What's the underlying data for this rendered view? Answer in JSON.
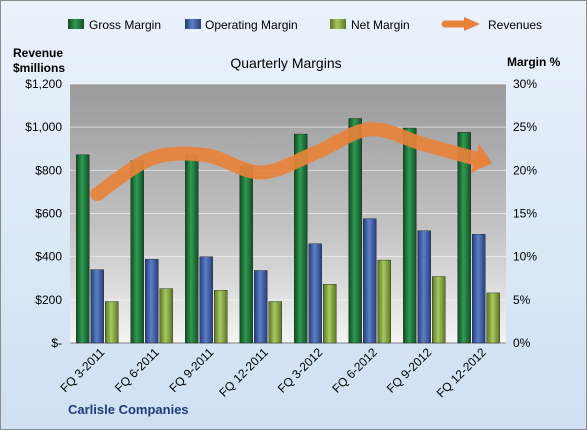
{
  "chart_data": {
    "type": "bar",
    "title": "Quarterly Margins",
    "company": "Carlisle Companies",
    "categories": [
      "FQ 3-2011",
      "FQ 6-2011",
      "FQ 9-2011",
      "FQ 12-2011",
      "FQ 3-2012",
      "FQ 6-2012",
      "FQ 9-2012",
      "FQ 12-2012"
    ],
    "left_axis": {
      "label_line1": "Revenue",
      "label_line2": "$millions",
      "ylim": [
        0,
        1200
      ],
      "ticks": [
        0,
        200,
        400,
        600,
        800,
        1000,
        1200
      ],
      "tick_labels": [
        "$-",
        "$200",
        "$400",
        "$600",
        "$800",
        "$1,000",
        "$1,200"
      ]
    },
    "right_axis": {
      "label": "Margin %",
      "ylim": [
        0,
        30
      ],
      "ticks": [
        0,
        5,
        10,
        15,
        20,
        25,
        30
      ],
      "tick_labels": [
        "0%",
        "5%",
        "10%",
        "15%",
        "20%",
        "25%",
        "30%"
      ]
    },
    "series": [
      {
        "name": "Gross Margin",
        "axis": "right",
        "kind": "bar",
        "color": "#1f7a3c",
        "values": [
          21.8,
          21.1,
          21.7,
          20.5,
          24.2,
          26.0,
          24.9,
          24.4
        ]
      },
      {
        "name": "Operating Margin",
        "axis": "right",
        "kind": "bar",
        "color": "#3d5ea8",
        "values": [
          8.5,
          9.7,
          10.0,
          8.4,
          11.5,
          14.4,
          13.0,
          12.6
        ]
      },
      {
        "name": "Net Margin",
        "axis": "right",
        "kind": "bar",
        "color": "#86a83a",
        "values": [
          4.8,
          6.3,
          6.1,
          4.8,
          6.8,
          9.6,
          7.7,
          5.8
        ]
      },
      {
        "name": "Revenues",
        "axis": "left",
        "kind": "line",
        "color": "#e8823a",
        "values": [
          690,
          855,
          870,
          790,
          880,
          990,
          920,
          850
        ]
      }
    ],
    "grid": true,
    "legend": "top"
  }
}
